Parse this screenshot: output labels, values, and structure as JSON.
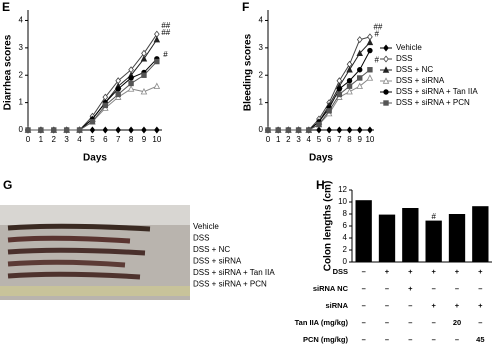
{
  "chart_data": [
    {
      "type": "line",
      "panel": "E",
      "ylabel": "Diarrhea scores",
      "xlabel": "Days",
      "x": [
        0,
        1,
        2,
        3,
        4,
        5,
        6,
        7,
        8,
        9,
        10
      ],
      "xlim": [
        0,
        10.4
      ],
      "xticks": [
        0,
        1,
        2,
        3,
        4,
        5,
        6,
        7,
        8,
        9,
        10
      ],
      "ylim": [
        0,
        4.2
      ],
      "yticks": [
        0,
        1,
        2,
        3,
        4
      ],
      "series": [
        {
          "color": "#000",
          "marker": "diamond",
          "fill": true,
          "values": [
            0,
            0,
            0,
            0,
            0,
            0,
            0,
            0,
            0,
            0,
            0
          ]
        },
        {
          "color": "#444",
          "marker": "diamond",
          "fill": false,
          "values": [
            0,
            0,
            0,
            0,
            0,
            0.5,
            1.2,
            1.8,
            2.2,
            2.8,
            3.5
          ]
        },
        {
          "color": "#222",
          "marker": "triangle",
          "fill": true,
          "values": [
            0,
            0,
            0,
            0,
            0,
            0.4,
            1.0,
            1.6,
            2.0,
            2.6,
            3.3
          ]
        },
        {
          "color": "#888",
          "marker": "triangle",
          "fill": false,
          "values": [
            0,
            0,
            0,
            0,
            0,
            0.3,
            0.8,
            1.2,
            1.5,
            1.4,
            1.6
          ]
        },
        {
          "color": "#000",
          "marker": "circle",
          "fill": true,
          "values": [
            0,
            0,
            0,
            0,
            0,
            0.4,
            1.0,
            1.5,
            1.9,
            2.1,
            2.6
          ]
        },
        {
          "color": "#555",
          "marker": "square",
          "fill": true,
          "values": [
            0,
            0,
            0,
            0,
            0,
            0.3,
            0.9,
            1.3,
            1.7,
            2.0,
            2.5
          ]
        }
      ],
      "annotations": [
        {
          "text": "##",
          "x": 10.35,
          "y": 3.8
        },
        {
          "text": "##",
          "x": 10.35,
          "y": 3.55
        },
        {
          "text": "#",
          "x": 10.5,
          "y": 2.75
        }
      ]
    },
    {
      "type": "line",
      "panel": "F",
      "ylabel": "Bleeding scores",
      "xlabel": "Days",
      "x": [
        0,
        1,
        2,
        3,
        4,
        5,
        6,
        7,
        8,
        9,
        10
      ],
      "xlim": [
        0,
        10.4
      ],
      "xticks": [
        0,
        1,
        2,
        3,
        4,
        5,
        6,
        7,
        8,
        9,
        10
      ],
      "ylim": [
        0,
        4.2
      ],
      "yticks": [
        0,
        1,
        2,
        3,
        4
      ],
      "series": [
        {
          "name": "Vehicle",
          "color": "#000",
          "marker": "diamond",
          "fill": true,
          "values": [
            0,
            0,
            0,
            0,
            0,
            0,
            0,
            0,
            0,
            0,
            0
          ]
        },
        {
          "name": "DSS",
          "color": "#444",
          "marker": "diamond",
          "fill": false,
          "values": [
            0,
            0,
            0,
            0,
            0,
            0.4,
            1.0,
            1.8,
            2.4,
            3.3,
            3.4
          ]
        },
        {
          "name": "DSS + NC",
          "color": "#222",
          "marker": "triangle",
          "fill": true,
          "values": [
            0,
            0,
            0,
            0,
            0,
            0.3,
            0.9,
            1.6,
            2.2,
            2.8,
            3.2
          ]
        },
        {
          "name": "DSS + siRNA",
          "color": "#888",
          "marker": "triangle",
          "fill": false,
          "values": [
            0,
            0,
            0,
            0,
            0,
            0.2,
            0.6,
            1.2,
            1.4,
            1.6,
            1.9
          ]
        },
        {
          "name": "DSS + siRNA + Tan IIA",
          "color": "#000",
          "marker": "circle",
          "fill": true,
          "values": [
            0,
            0,
            0,
            0,
            0,
            0.3,
            0.8,
            1.5,
            1.8,
            2.2,
            2.9
          ]
        },
        {
          "name": "DSS + siRNA + PCN",
          "color": "#555",
          "marker": "square",
          "fill": true,
          "values": [
            0,
            0,
            0,
            0,
            0,
            0.2,
            0.7,
            1.3,
            1.6,
            1.9,
            2.2
          ]
        }
      ],
      "annotations": [
        {
          "text": "##",
          "x": 10.35,
          "y": 3.75
        },
        {
          "text": "#",
          "x": 10.45,
          "y": 3.5
        },
        {
          "text": "#",
          "x": 10.45,
          "y": 2.55
        }
      ]
    },
    {
      "type": "bar",
      "panel": "H",
      "ylabel": "Colon lengths (cm)",
      "color": "#000",
      "categories": [
        null,
        null,
        null,
        null,
        null,
        null
      ],
      "values": [
        10.3,
        7.9,
        9.0,
        6.9,
        8.0,
        9.3
      ],
      "ylim": [
        0,
        12
      ],
      "yticks": [
        0,
        2,
        4,
        6,
        8,
        10,
        12
      ],
      "annotations": [
        {
          "text": "#",
          "index": 3,
          "y": 7.5
        }
      ],
      "rows": [
        {
          "label": "DSS",
          "cells": [
            "–",
            "+",
            "+",
            "+",
            "+",
            "+"
          ]
        },
        {
          "label": "siRNA NC",
          "cells": [
            "–",
            "–",
            "+",
            "–",
            "–",
            "–"
          ]
        },
        {
          "label": "siRNA",
          "cells": [
            "–",
            "–",
            "–",
            "+",
            "+",
            "+"
          ]
        },
        {
          "label": "Tan IIA (mg/kg)",
          "cells": [
            "–",
            "–",
            "–",
            "–",
            "20",
            "–"
          ]
        },
        {
          "label": "PCN (mg/kg)",
          "cells": [
            "–",
            "–",
            "–",
            "–",
            "–",
            "45"
          ]
        }
      ]
    }
  ],
  "photo": {
    "panel": "G",
    "legend": [
      "Vehicle",
      "DSS",
      "DSS + NC",
      "DSS + siRNA",
      "DSS + siRNA + Tan IIA",
      "DSS + siRNA + PCN"
    ]
  }
}
